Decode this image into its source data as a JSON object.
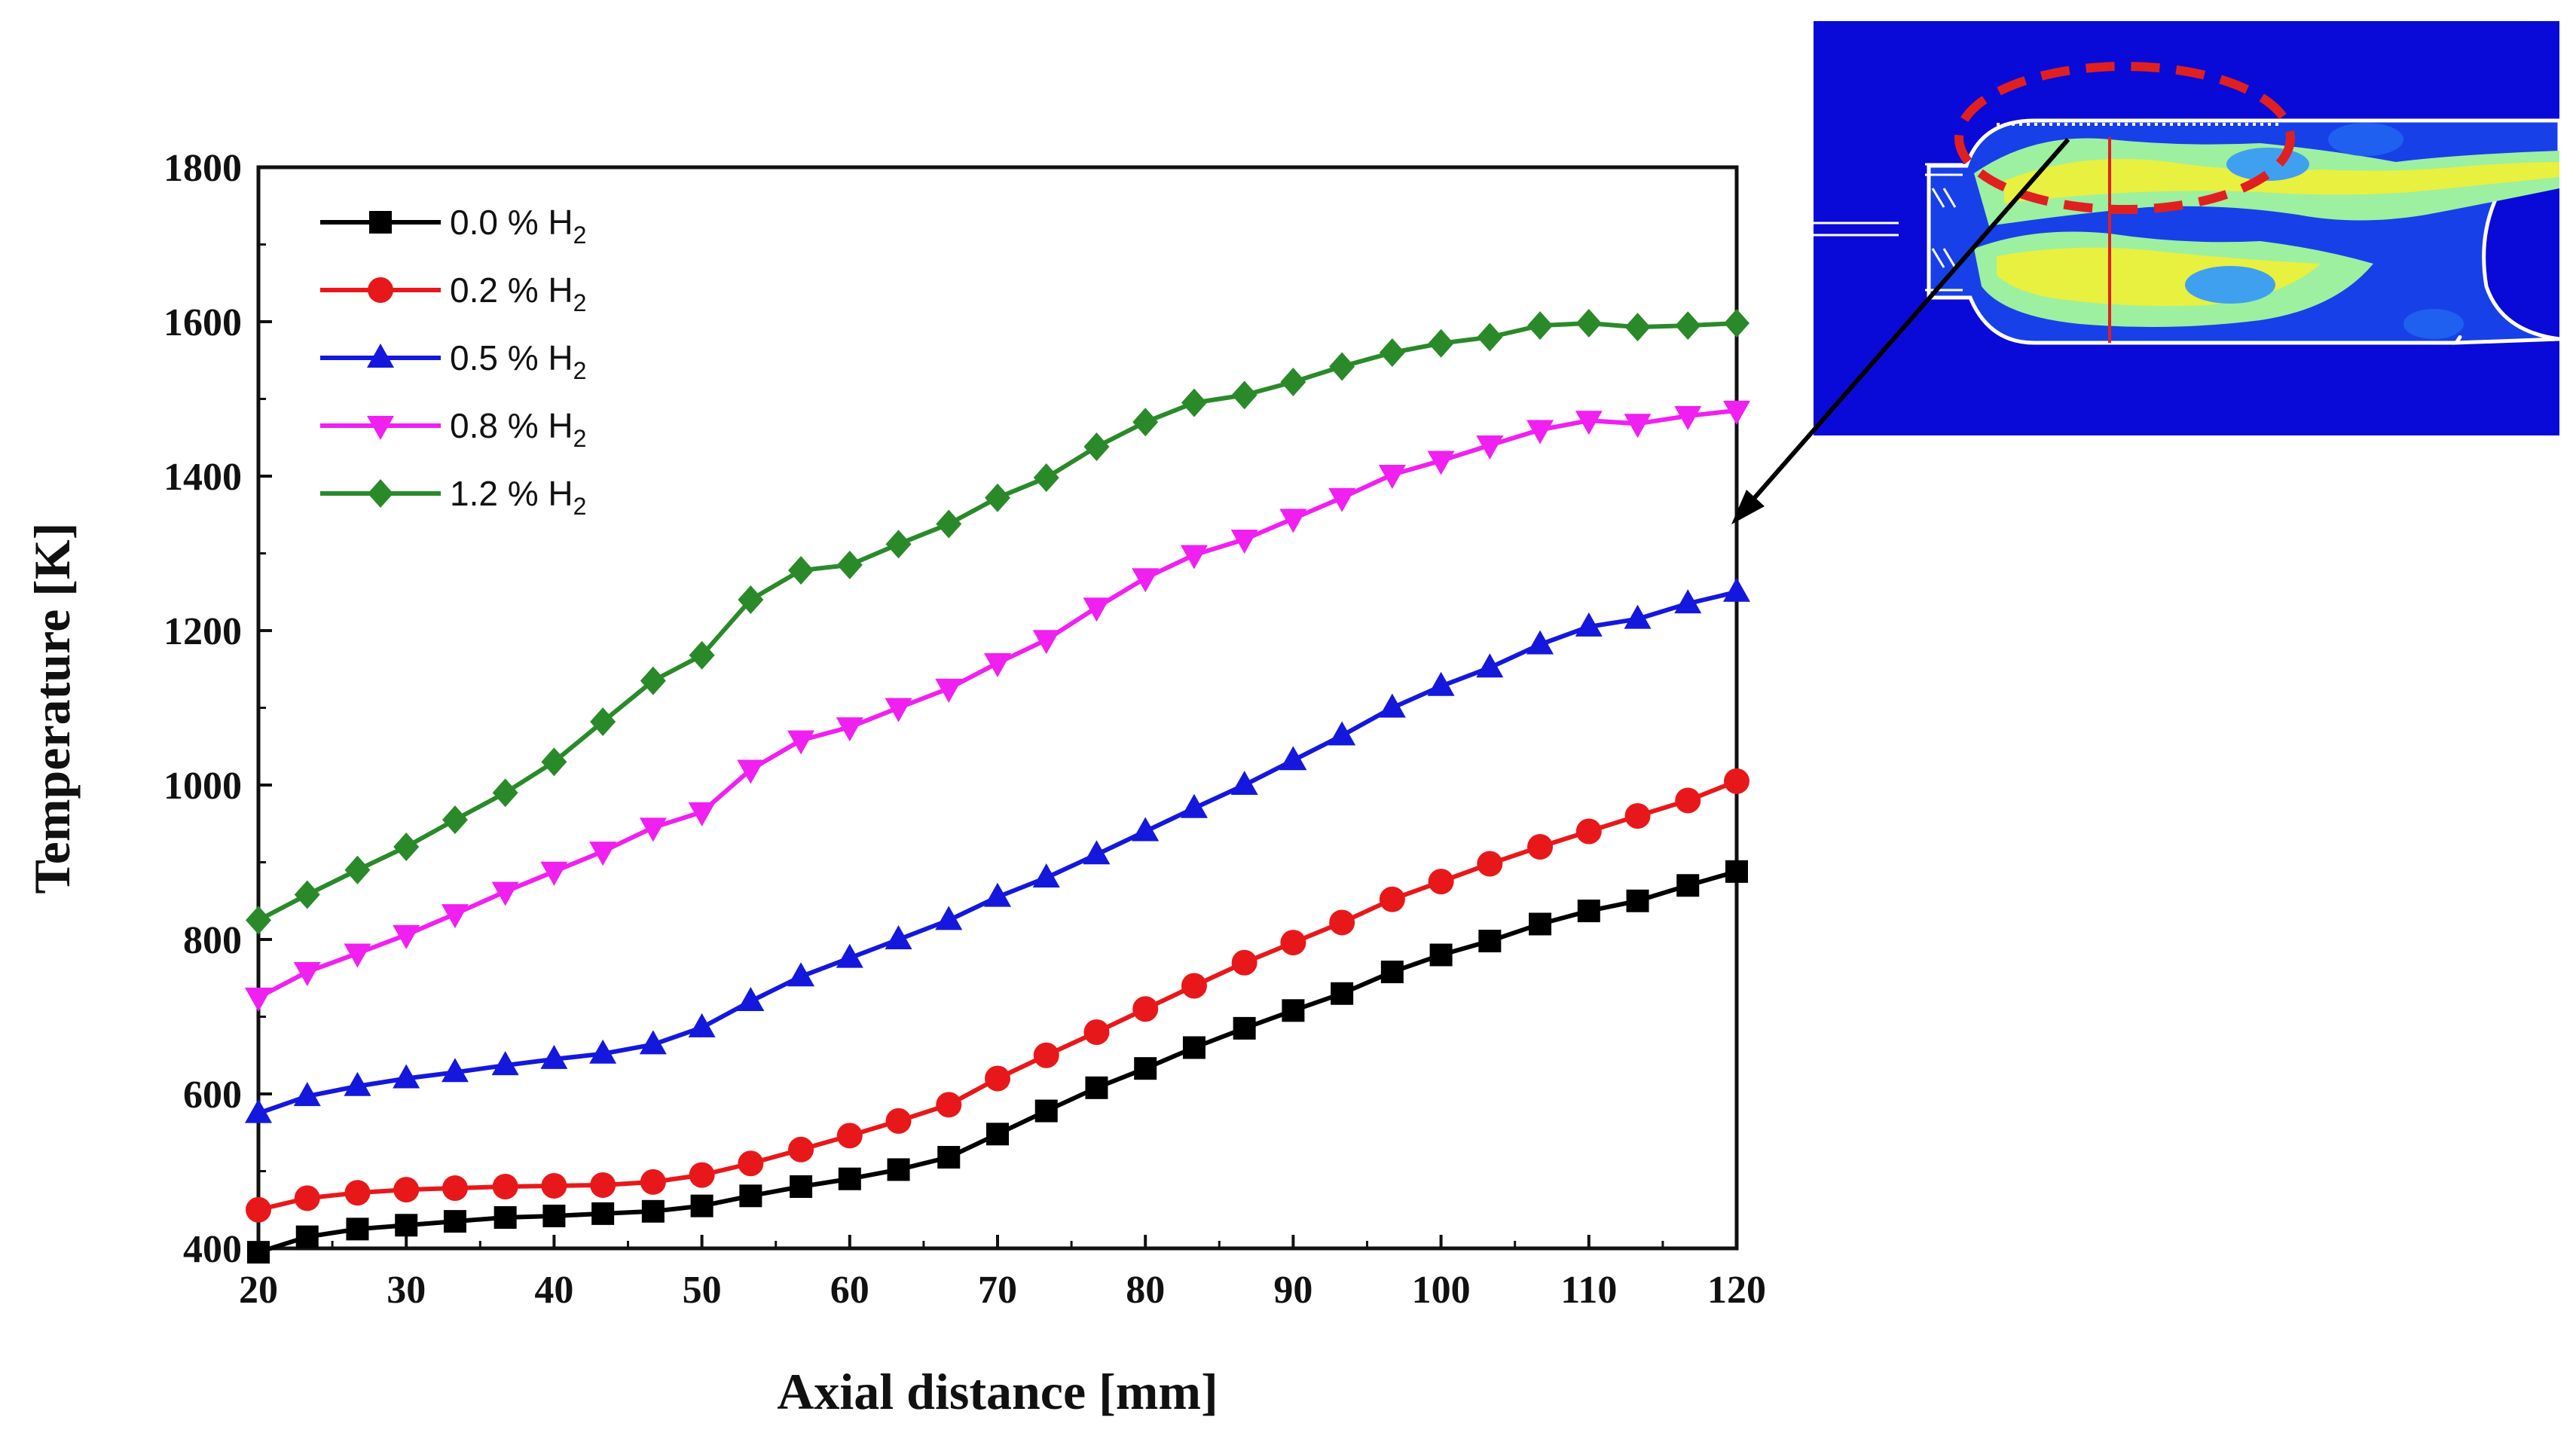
{
  "chart_data": {
    "type": "line",
    "title": "",
    "xlabel": "Axial distance [mm]",
    "ylabel": "Temperature [K]",
    "xlim": [
      20,
      120
    ],
    "ylim": [
      400,
      1800
    ],
    "xticks": [
      20,
      30,
      40,
      50,
      60,
      70,
      80,
      90,
      100,
      110,
      120
    ],
    "yticks": [
      400,
      600,
      800,
      1000,
      1200,
      1400,
      1600,
      1800
    ],
    "grid": false,
    "legend_position": "top-left",
    "x": [
      20,
      23.3,
      26.7,
      30,
      33.3,
      36.7,
      40,
      43.3,
      46.7,
      50,
      53.3,
      56.7,
      60,
      63.3,
      66.7,
      70,
      73.3,
      76.7,
      80,
      83.3,
      86.7,
      90,
      93.3,
      96.7,
      100,
      103.3,
      106.7,
      110,
      113.3,
      116.7,
      120
    ],
    "series": [
      {
        "name": "0.0 % H2",
        "label_main": "0.0 % H",
        "label_sub": "2",
        "color": "#000000",
        "marker": "square",
        "values": [
          395,
          415,
          425,
          430,
          435,
          440,
          442,
          445,
          448,
          455,
          468,
          480,
          490,
          502,
          518,
          548,
          578,
          608,
          633,
          660,
          685,
          708,
          730,
          758,
          780,
          798,
          820,
          837,
          850,
          870,
          888
        ]
      },
      {
        "name": "0.2 % H2",
        "label_main": "0.2 % H",
        "label_sub": "2",
        "color": "#e8181a",
        "marker": "circle",
        "values": [
          450,
          465,
          472,
          476,
          478,
          480,
          481,
          482,
          486,
          495,
          510,
          528,
          546,
          565,
          586,
          620,
          650,
          680,
          710,
          740,
          770,
          796,
          822,
          852,
          875,
          898,
          920,
          940,
          960,
          980,
          1005
        ]
      },
      {
        "name": "0.5 % H2",
        "label_main": "0.5 % H",
        "label_sub": "2",
        "color": "#1418dc",
        "marker": "triangle-up",
        "values": [
          575,
          597,
          610,
          620,
          628,
          637,
          645,
          652,
          664,
          686,
          720,
          752,
          776,
          800,
          825,
          855,
          880,
          910,
          940,
          970,
          1000,
          1032,
          1064,
          1100,
          1128,
          1152,
          1182,
          1205,
          1215,
          1235,
          1250
        ]
      },
      {
        "name": "0.8 % H2",
        "label_main": "0.8 % H",
        "label_sub": "2",
        "color": "#f020f0",
        "marker": "triangle-down",
        "values": [
          725,
          758,
          782,
          806,
          833,
          862,
          888,
          914,
          945,
          965,
          1020,
          1058,
          1075,
          1100,
          1125,
          1158,
          1188,
          1230,
          1268,
          1298,
          1318,
          1345,
          1372,
          1402,
          1420,
          1440,
          1460,
          1472,
          1468,
          1478,
          1485
        ]
      },
      {
        "name": "1.2 % H2",
        "label_main": "1.2 % H",
        "label_sub": "2",
        "color": "#2a8a2a",
        "marker": "diamond",
        "values": [
          825,
          858,
          890,
          920,
          955,
          990,
          1030,
          1082,
          1135,
          1168,
          1240,
          1278,
          1285,
          1312,
          1338,
          1372,
          1398,
          1438,
          1470,
          1495,
          1505,
          1522,
          1542,
          1560,
          1572,
          1580,
          1595,
          1598,
          1593,
          1595,
          1598
        ]
      }
    ]
  },
  "inset": {
    "description_colors": {
      "background": "#0a0ad8",
      "flow_light": "#9cf0a0",
      "flow_yellow": "#e8f040",
      "flow_cyan": "#40d8e0",
      "ellipse": "#e02020",
      "cutline": "#e02020",
      "arrow": "#000000"
    }
  }
}
